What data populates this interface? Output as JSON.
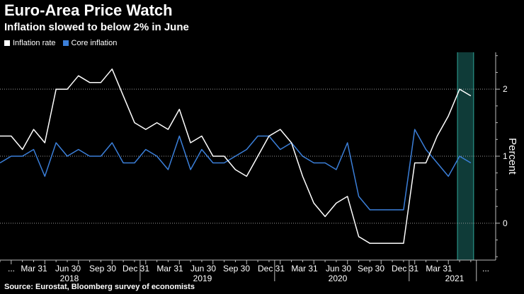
{
  "header": {
    "title": "Euro-Area Price Watch",
    "subtitle": "Inflation slowed to below 2% in June"
  },
  "legend": {
    "items": [
      {
        "label": "Inflation rate",
        "color": "#ffffff"
      },
      {
        "label": "Core inflation",
        "color": "#3b7fd9"
      }
    ]
  },
  "footer": {
    "source": "Source: Eurostat, Bloomberg survey of economists"
  },
  "chart_data": {
    "type": "line",
    "title": "Euro-Area Price Watch",
    "subtitle": "Inflation slowed to below 2% in June",
    "ylabel": "Percent",
    "ylim": [
      -0.55,
      2.55
    ],
    "yticks": [
      0,
      1,
      2
    ],
    "grid": true,
    "legend_position": "top-left",
    "x_month_labels": [
      "...",
      "Mar 31",
      "Jun 30",
      "Sep 30",
      "Dec 31",
      "Mar 31",
      "Jun 30",
      "Sep 30",
      "Dec 31",
      "Mar 31",
      "Jun 30",
      "Sep 30",
      "Dec 31",
      "Mar 31",
      "..."
    ],
    "x_year_labels": [
      "2018",
      "2019",
      "2020",
      "2021"
    ],
    "highlight": {
      "from": "2021-05",
      "to": "2021-06",
      "color": "#0f3b38"
    },
    "x": [
      "2017-12",
      "2018-01",
      "2018-02",
      "2018-03",
      "2018-04",
      "2018-05",
      "2018-06",
      "2018-07",
      "2018-08",
      "2018-09",
      "2018-10",
      "2018-11",
      "2018-12",
      "2019-01",
      "2019-02",
      "2019-03",
      "2019-04",
      "2019-05",
      "2019-06",
      "2019-07",
      "2019-08",
      "2019-09",
      "2019-10",
      "2019-11",
      "2019-12",
      "2020-01",
      "2020-02",
      "2020-03",
      "2020-04",
      "2020-05",
      "2020-06",
      "2020-07",
      "2020-08",
      "2020-09",
      "2020-10",
      "2020-11",
      "2020-12",
      "2021-01",
      "2021-02",
      "2021-03",
      "2021-04",
      "2021-05",
      "2021-06"
    ],
    "series": [
      {
        "name": "Inflation rate",
        "color": "#ffffff",
        "values": [
          1.3,
          1.3,
          1.1,
          1.4,
          1.2,
          2.0,
          2.0,
          2.2,
          2.1,
          2.1,
          2.3,
          1.9,
          1.5,
          1.4,
          1.5,
          1.4,
          1.7,
          1.2,
          1.3,
          1.0,
          1.0,
          0.8,
          0.7,
          1.0,
          1.3,
          1.4,
          1.2,
          0.7,
          0.3,
          0.1,
          0.3,
          0.4,
          -0.2,
          -0.3,
          -0.3,
          -0.3,
          -0.3,
          0.9,
          0.9,
          1.3,
          1.6,
          2.0,
          1.9
        ]
      },
      {
        "name": "Core inflation",
        "color": "#3b7fd9",
        "values": [
          0.9,
          1.0,
          1.0,
          1.1,
          0.7,
          1.2,
          1.0,
          1.1,
          1.0,
          1.0,
          1.2,
          0.9,
          0.9,
          1.1,
          1.0,
          0.8,
          1.3,
          0.8,
          1.1,
          0.9,
          0.9,
          1.0,
          1.1,
          1.3,
          1.3,
          1.1,
          1.2,
          1.0,
          0.9,
          0.9,
          0.8,
          1.2,
          0.4,
          0.2,
          0.2,
          0.2,
          0.2,
          1.4,
          1.1,
          0.9,
          0.7,
          1.0,
          0.9
        ]
      }
    ]
  }
}
